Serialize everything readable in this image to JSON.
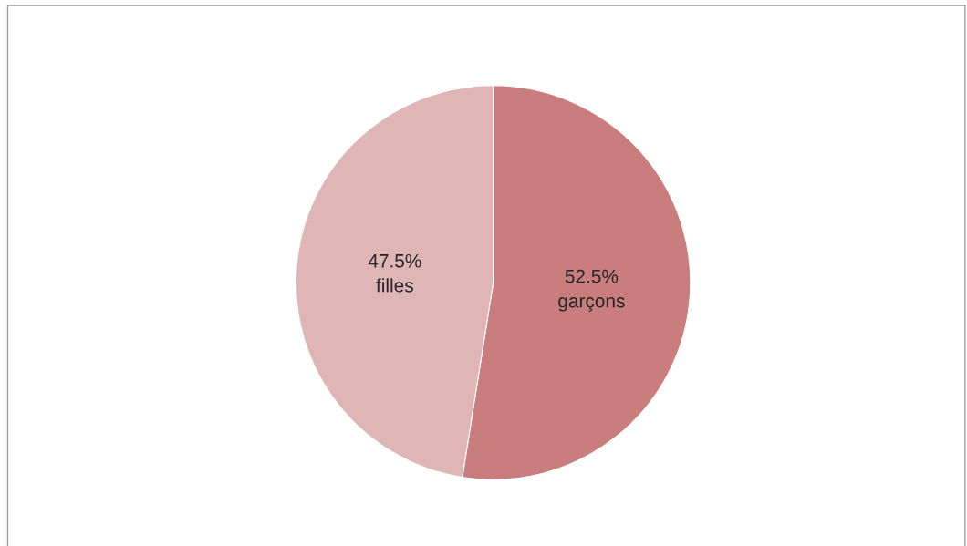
{
  "chart_data": {
    "type": "pie",
    "categories": [
      "garçons",
      "filles"
    ],
    "values": [
      52.5,
      47.5
    ],
    "colors": [
      "#c97d7c",
      "#dfb5b5"
    ],
    "value_labels": [
      "52.5%",
      "47.5%"
    ]
  }
}
